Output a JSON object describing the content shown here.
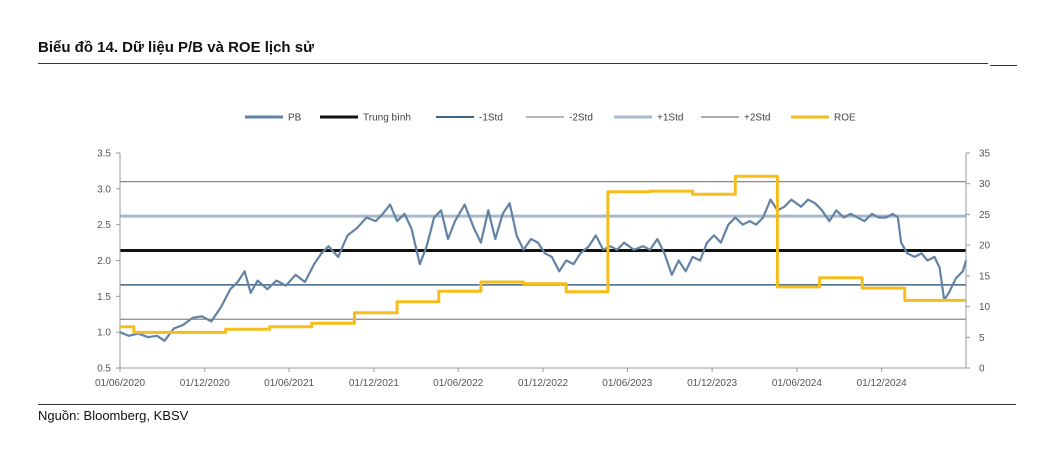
{
  "title": "Biểu đồ 14. Dữ liệu P/B và ROE lịch sử",
  "source": "Nguồn: Bloomberg, KBSV",
  "chart_data": {
    "type": "line",
    "legend_position": "top",
    "grid": false,
    "y_left": {
      "min": 0.5,
      "max": 3.5,
      "ticks": [
        "0.5",
        "1.0",
        "1.5",
        "2.0",
        "2.5",
        "3.0",
        "3.5"
      ]
    },
    "y_right": {
      "min": 0,
      "max": 35,
      "ticks": [
        "0",
        "5",
        "10",
        "15",
        "20",
        "25",
        "30",
        "35"
      ]
    },
    "x_range": [
      "2020-06-01",
      "2025-06-01"
    ],
    "x_ticks": [
      {
        "date": "2020-06-01",
        "label": "01/06/2020"
      },
      {
        "date": "2020-12-01",
        "label": "01/12/2020"
      },
      {
        "date": "2021-06-01",
        "label": "01/06/2021"
      },
      {
        "date": "2021-12-01",
        "label": "01/12/2021"
      },
      {
        "date": "2022-06-01",
        "label": "01/06/2022"
      },
      {
        "date": "2022-12-01",
        "label": "01/12/2022"
      },
      {
        "date": "2023-06-01",
        "label": "01/06/2023"
      },
      {
        "date": "2023-12-01",
        "label": "01/12/2023"
      },
      {
        "date": "2024-06-01",
        "label": "01/06/2024"
      },
      {
        "date": "2024-12-01",
        "label": "01/12/2024"
      }
    ],
    "reference_lines": [
      {
        "name": "Trung bình",
        "value": 2.14,
        "color": "#111111",
        "width": 3
      },
      {
        "name": "-1Std",
        "value": 1.66,
        "color": "#3f6584",
        "width": 1.6
      },
      {
        "name": "-2Std",
        "value": 1.18,
        "color": "#8a8a8a",
        "width": 1.2
      },
      {
        "name": "+1Std",
        "value": 2.62,
        "color": "#a7b9cb",
        "width": 3
      },
      {
        "name": "+2Std",
        "value": 3.1,
        "color": "#7a7a7a",
        "width": 1.2
      }
    ],
    "series": [
      {
        "name": "PB",
        "axis": "left",
        "color": "#6282a6",
        "points": [
          [
            "2020-06-01",
            1.0
          ],
          [
            "2020-06-20",
            0.95
          ],
          [
            "2020-07-10",
            0.98
          ],
          [
            "2020-08-01",
            0.93
          ],
          [
            "2020-08-20",
            0.95
          ],
          [
            "2020-09-05",
            0.88
          ],
          [
            "2020-09-25",
            1.05
          ],
          [
            "2020-10-15",
            1.1
          ],
          [
            "2020-11-05",
            1.2
          ],
          [
            "2020-11-25",
            1.22
          ],
          [
            "2020-12-15",
            1.15
          ],
          [
            "2021-01-05",
            1.35
          ],
          [
            "2021-01-25",
            1.6
          ],
          [
            "2021-02-10",
            1.7
          ],
          [
            "2021-02-25",
            1.85
          ],
          [
            "2021-03-10",
            1.55
          ],
          [
            "2021-03-25",
            1.72
          ],
          [
            "2021-04-15",
            1.6
          ],
          [
            "2021-05-05",
            1.72
          ],
          [
            "2021-05-25",
            1.65
          ],
          [
            "2021-06-15",
            1.8
          ],
          [
            "2021-07-05",
            1.7
          ],
          [
            "2021-07-25",
            1.95
          ],
          [
            "2021-08-10",
            2.1
          ],
          [
            "2021-08-25",
            2.2
          ],
          [
            "2021-09-15",
            2.05
          ],
          [
            "2021-10-05",
            2.35
          ],
          [
            "2021-10-25",
            2.45
          ],
          [
            "2021-11-15",
            2.6
          ],
          [
            "2021-12-05",
            2.55
          ],
          [
            "2021-12-20",
            2.65
          ],
          [
            "2022-01-05",
            2.78
          ],
          [
            "2022-01-20",
            2.55
          ],
          [
            "2022-02-05",
            2.65
          ],
          [
            "2022-02-20",
            2.45
          ],
          [
            "2022-03-10",
            1.95
          ],
          [
            "2022-03-25",
            2.2
          ],
          [
            "2022-04-10",
            2.6
          ],
          [
            "2022-04-25",
            2.7
          ],
          [
            "2022-05-10",
            2.3
          ],
          [
            "2022-05-25",
            2.55
          ],
          [
            "2022-06-15",
            2.78
          ],
          [
            "2022-07-05",
            2.45
          ],
          [
            "2022-07-20",
            2.25
          ],
          [
            "2022-08-05",
            2.7
          ],
          [
            "2022-08-20",
            2.3
          ],
          [
            "2022-09-05",
            2.65
          ],
          [
            "2022-09-20",
            2.8
          ],
          [
            "2022-10-05",
            2.35
          ],
          [
            "2022-10-20",
            2.15
          ],
          [
            "2022-11-05",
            2.3
          ],
          [
            "2022-11-20",
            2.25
          ],
          [
            "2022-12-05",
            2.1
          ],
          [
            "2022-12-20",
            2.05
          ],
          [
            "2023-01-05",
            1.85
          ],
          [
            "2023-01-20",
            2.0
          ],
          [
            "2023-02-05",
            1.95
          ],
          [
            "2023-02-20",
            2.1
          ],
          [
            "2023-03-10",
            2.2
          ],
          [
            "2023-03-25",
            2.35
          ],
          [
            "2023-04-10",
            2.15
          ],
          [
            "2023-04-25",
            2.2
          ],
          [
            "2023-05-10",
            2.15
          ],
          [
            "2023-05-25",
            2.25
          ],
          [
            "2023-06-15",
            2.15
          ],
          [
            "2023-07-05",
            2.2
          ],
          [
            "2023-07-20",
            2.15
          ],
          [
            "2023-08-05",
            2.3
          ],
          [
            "2023-08-20",
            2.1
          ],
          [
            "2023-09-05",
            1.8
          ],
          [
            "2023-09-20",
            2.0
          ],
          [
            "2023-10-05",
            1.85
          ],
          [
            "2023-10-20",
            2.05
          ],
          [
            "2023-11-05",
            2.0
          ],
          [
            "2023-11-20",
            2.25
          ],
          [
            "2023-12-05",
            2.35
          ],
          [
            "2023-12-20",
            2.25
          ],
          [
            "2024-01-05",
            2.5
          ],
          [
            "2024-01-20",
            2.6
          ],
          [
            "2024-02-05",
            2.5
          ],
          [
            "2024-02-20",
            2.55
          ],
          [
            "2024-03-05",
            2.5
          ],
          [
            "2024-03-20",
            2.6
          ],
          [
            "2024-04-05",
            2.85
          ],
          [
            "2024-04-20",
            2.7
          ],
          [
            "2024-05-05",
            2.75
          ],
          [
            "2024-05-20",
            2.85
          ],
          [
            "2024-06-10",
            2.75
          ],
          [
            "2024-06-25",
            2.85
          ],
          [
            "2024-07-10",
            2.8
          ],
          [
            "2024-07-25",
            2.7
          ],
          [
            "2024-08-10",
            2.55
          ],
          [
            "2024-08-25",
            2.7
          ],
          [
            "2024-09-10",
            2.6
          ],
          [
            "2024-09-25",
            2.65
          ],
          [
            "2024-10-10",
            2.6
          ],
          [
            "2024-10-25",
            2.55
          ],
          [
            "2024-11-10",
            2.65
          ],
          [
            "2024-11-25",
            2.6
          ],
          [
            "2024-12-10",
            2.6
          ],
          [
            "2024-12-25",
            2.65
          ],
          [
            "2025-01-05",
            2.6
          ],
          [
            "2025-01-12",
            2.25
          ],
          [
            "2025-01-25",
            2.1
          ],
          [
            "2025-02-10",
            2.05
          ],
          [
            "2025-02-25",
            2.1
          ],
          [
            "2025-03-10",
            2.0
          ],
          [
            "2025-03-25",
            2.05
          ],
          [
            "2025-04-05",
            1.9
          ],
          [
            "2025-04-15",
            1.45
          ],
          [
            "2025-04-25",
            1.55
          ],
          [
            "2025-05-10",
            1.75
          ],
          [
            "2025-05-25",
            1.85
          ],
          [
            "2025-06-01",
            2.0
          ]
        ]
      },
      {
        "name": "ROE",
        "axis": "right",
        "color": "#f6be1c",
        "step": true,
        "points": [
          [
            "2020-06-01",
            6.7
          ],
          [
            "2020-07-01",
            5.8
          ],
          [
            "2021-01-15",
            6.3
          ],
          [
            "2021-04-20",
            6.7
          ],
          [
            "2021-07-20",
            7.3
          ],
          [
            "2021-10-20",
            9.0
          ],
          [
            "2022-01-20",
            10.8
          ],
          [
            "2022-04-20",
            12.5
          ],
          [
            "2022-07-20",
            14.0
          ],
          [
            "2022-10-20",
            13.7
          ],
          [
            "2023-01-20",
            12.4
          ],
          [
            "2023-04-20",
            28.7
          ],
          [
            "2023-07-20",
            28.8
          ],
          [
            "2023-10-20",
            28.3
          ],
          [
            "2024-01-20",
            31.2
          ],
          [
            "2024-04-20",
            13.2
          ],
          [
            "2024-07-20",
            14.7
          ],
          [
            "2024-10-20",
            13.0
          ],
          [
            "2025-01-20",
            11.0
          ],
          [
            "2025-06-01",
            11.0
          ]
        ]
      }
    ],
    "legend": [
      {
        "name": "PB",
        "color": "#6282a6",
        "width": 3
      },
      {
        "name": "Trung bình",
        "color": "#111111",
        "width": 3
      },
      {
        "name": "-1Std",
        "color": "#3f6584",
        "width": 2
      },
      {
        "name": "-2Std",
        "color": "#8a8a8a",
        "width": 1.2
      },
      {
        "name": "+1Std",
        "color": "#a7b9cb",
        "width": 3
      },
      {
        "name": "+2Std",
        "color": "#7a7a7a",
        "width": 1.2
      },
      {
        "name": "ROE",
        "color": "#f6be1c",
        "width": 3
      }
    ]
  }
}
